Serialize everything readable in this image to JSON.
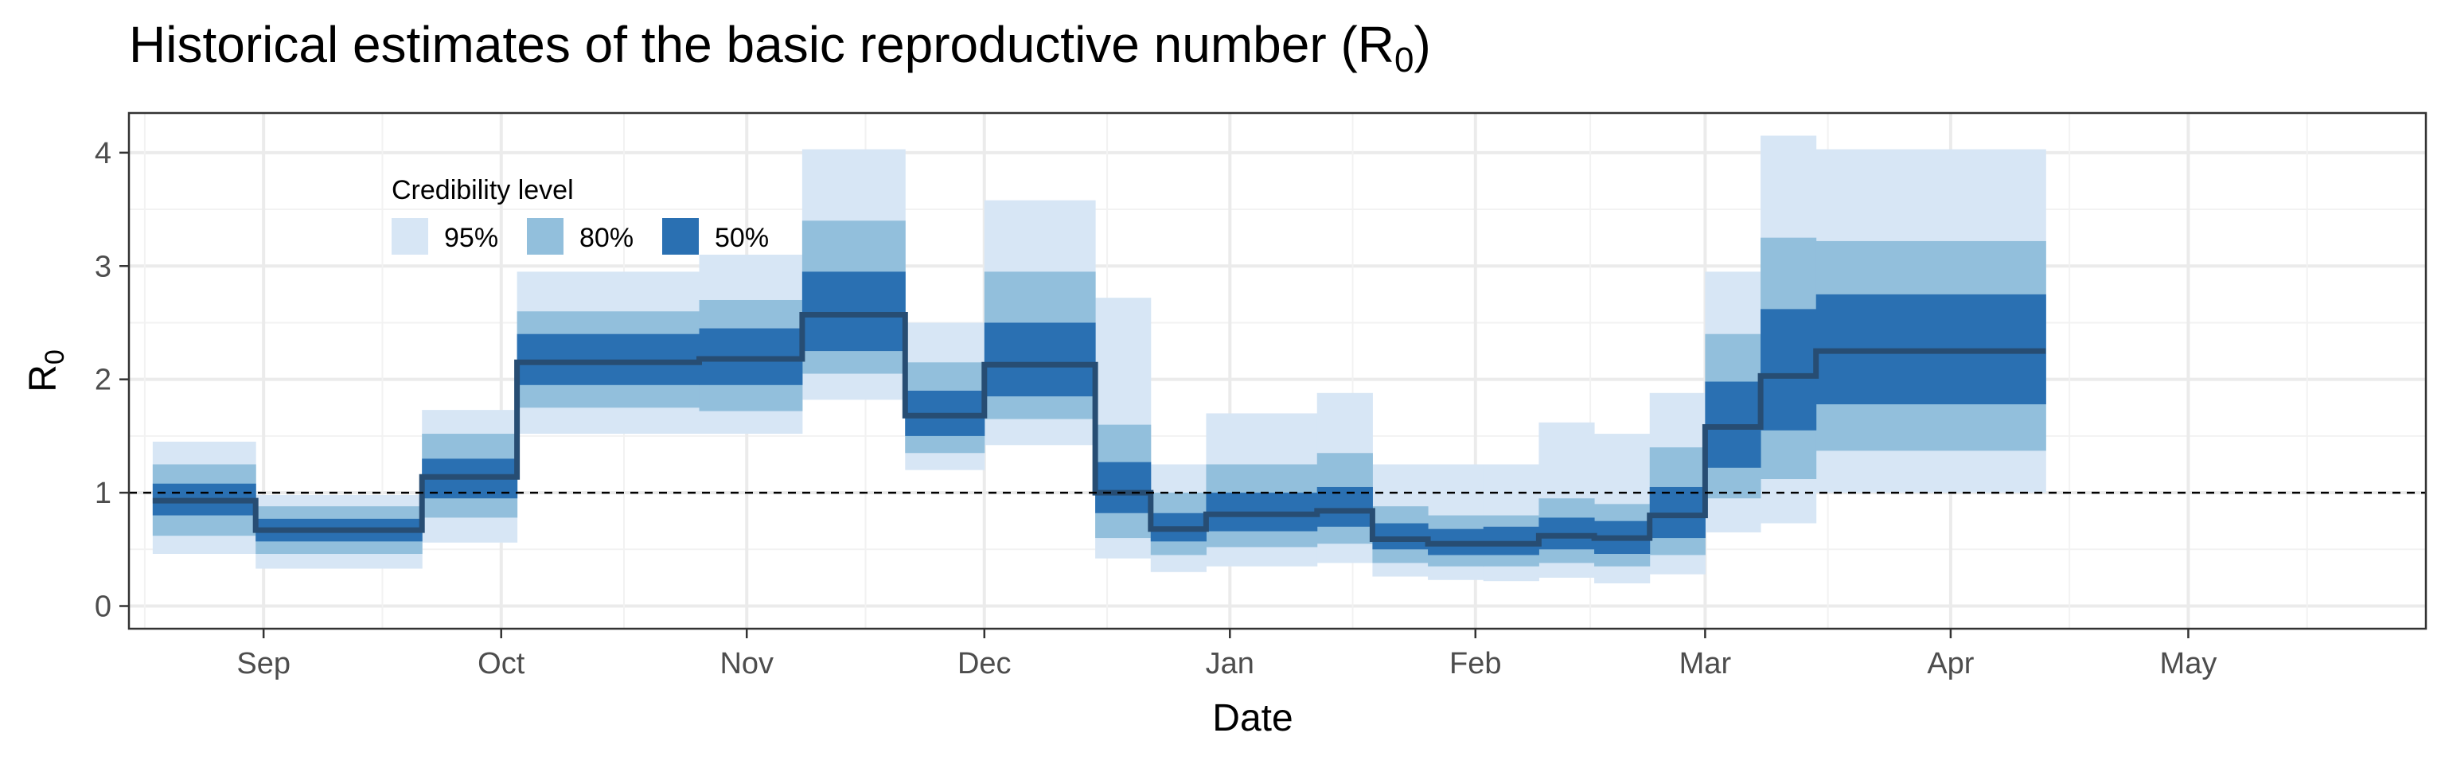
{
  "chart_data": {
    "type": "area",
    "title": "Historical estimates of the basic reproductive number (R",
    "title_sub": "0",
    "title_end": ")",
    "xlabel": "Date",
    "ylabel": "R",
    "ylabel_sub": "0",
    "xlim": [
      "2019-08-15",
      "2020-05-31"
    ],
    "ylim": [
      -0.2,
      4.35
    ],
    "y_ticks": [
      0,
      1,
      2,
      3,
      4
    ],
    "x_ticks": [
      {
        "date": "2019-09-01",
        "label": "Sep"
      },
      {
        "date": "2019-10-01",
        "label": "Oct"
      },
      {
        "date": "2019-11-01",
        "label": "Nov"
      },
      {
        "date": "2019-12-01",
        "label": "Dec"
      },
      {
        "date": "2020-01-01",
        "label": "Jan"
      },
      {
        "date": "2020-02-01",
        "label": "Feb"
      },
      {
        "date": "2020-03-01",
        "label": "Mar"
      },
      {
        "date": "2020-04-01",
        "label": "Apr"
      },
      {
        "date": "2020-05-01",
        "label": "May"
      }
    ],
    "grid": true,
    "reference_line": 1,
    "legend": {
      "title": "Credibility level",
      "position": "top-left",
      "entries": [
        {
          "label": "95%",
          "color": "#d7e6f5"
        },
        {
          "label": "80%",
          "color": "#92bfdc"
        },
        {
          "label": "50%",
          "color": "#2a70b2"
        }
      ]
    },
    "median_color": "#274d73",
    "segments": [
      {
        "start": "2019-08-18",
        "end": "2019-08-31",
        "median": 0.93,
        "q50": [
          0.8,
          1.08
        ],
        "q80": [
          0.62,
          1.25
        ],
        "q95": [
          0.46,
          1.45
        ]
      },
      {
        "start": "2019-08-31",
        "end": "2019-09-21",
        "median": 0.67,
        "q50": [
          0.57,
          0.77
        ],
        "q80": [
          0.46,
          0.88
        ],
        "q95": [
          0.33,
          0.98
        ]
      },
      {
        "start": "2019-09-21",
        "end": "2019-10-03",
        "median": 1.14,
        "q50": [
          0.95,
          1.3
        ],
        "q80": [
          0.78,
          1.52
        ],
        "q95": [
          0.56,
          1.73
        ]
      },
      {
        "start": "2019-10-03",
        "end": "2019-10-26",
        "median": 2.15,
        "q50": [
          1.95,
          2.4
        ],
        "q80": [
          1.75,
          2.6
        ],
        "q95": [
          1.52,
          2.95
        ]
      },
      {
        "start": "2019-10-26",
        "end": "2019-11-08",
        "median": 2.18,
        "q50": [
          1.95,
          2.45
        ],
        "q80": [
          1.72,
          2.7
        ],
        "q95": [
          1.52,
          3.1
        ]
      },
      {
        "start": "2019-11-08",
        "end": "2019-11-21",
        "median": 2.57,
        "q50": [
          2.25,
          2.95
        ],
        "q80": [
          2.05,
          3.4
        ],
        "q95": [
          1.82,
          4.03
        ]
      },
      {
        "start": "2019-11-21",
        "end": "2019-12-01",
        "median": 1.68,
        "q50": [
          1.5,
          1.9
        ],
        "q80": [
          1.35,
          2.15
        ],
        "q95": [
          1.2,
          2.5
        ]
      },
      {
        "start": "2019-12-01",
        "end": "2019-12-15",
        "median": 2.13,
        "q50": [
          1.85,
          2.5
        ],
        "q80": [
          1.65,
          2.95
        ],
        "q95": [
          1.42,
          3.58
        ]
      },
      {
        "start": "2019-12-15",
        "end": "2019-12-22",
        "median": 1.0,
        "q50": [
          0.82,
          1.27
        ],
        "q80": [
          0.6,
          1.6
        ],
        "q95": [
          0.42,
          2.72
        ]
      },
      {
        "start": "2019-12-22",
        "end": "2019-12-29",
        "median": 0.68,
        "q50": [
          0.57,
          0.82
        ],
        "q80": [
          0.45,
          1.0
        ],
        "q95": [
          0.3,
          1.25
        ]
      },
      {
        "start": "2019-12-29",
        "end": "2020-01-12",
        "median": 0.81,
        "q50": [
          0.66,
          1.0
        ],
        "q80": [
          0.52,
          1.25
        ],
        "q95": [
          0.35,
          1.7
        ]
      },
      {
        "start": "2020-01-12",
        "end": "2020-01-19",
        "median": 0.84,
        "q50": [
          0.7,
          1.05
        ],
        "q80": [
          0.55,
          1.35
        ],
        "q95": [
          0.38,
          1.88
        ]
      },
      {
        "start": "2020-01-19",
        "end": "2020-01-26",
        "median": 0.59,
        "q50": [
          0.5,
          0.73
        ],
        "q80": [
          0.38,
          0.88
        ],
        "q95": [
          0.26,
          1.25
        ]
      },
      {
        "start": "2020-01-26",
        "end": "2020-02-02",
        "median": 0.55,
        "q50": [
          0.45,
          0.68
        ],
        "q80": [
          0.35,
          0.8
        ],
        "q95": [
          0.23,
          1.25
        ]
      },
      {
        "start": "2020-02-02",
        "end": "2020-02-09",
        "median": 0.55,
        "q50": [
          0.45,
          0.7
        ],
        "q80": [
          0.35,
          0.8
        ],
        "q95": [
          0.22,
          1.25
        ]
      },
      {
        "start": "2020-02-09",
        "end": "2020-02-16",
        "median": 0.62,
        "q50": [
          0.5,
          0.78
        ],
        "q80": [
          0.38,
          0.95
        ],
        "q95": [
          0.25,
          1.62
        ]
      },
      {
        "start": "2020-02-16",
        "end": "2020-02-23",
        "median": 0.6,
        "q50": [
          0.46,
          0.75
        ],
        "q80": [
          0.35,
          0.9
        ],
        "q95": [
          0.2,
          1.52
        ]
      },
      {
        "start": "2020-02-23",
        "end": "2020-03-01",
        "median": 0.8,
        "q50": [
          0.6,
          1.05
        ],
        "q80": [
          0.45,
          1.4
        ],
        "q95": [
          0.28,
          1.88
        ]
      },
      {
        "start": "2020-03-01",
        "end": "2020-03-08",
        "median": 1.58,
        "q50": [
          1.22,
          1.98
        ],
        "q80": [
          0.95,
          2.4
        ],
        "q95": [
          0.65,
          2.95
        ]
      },
      {
        "start": "2020-03-08",
        "end": "2020-03-15",
        "median": 2.03,
        "q50": [
          1.55,
          2.62
        ],
        "q80": [
          1.12,
          3.25
        ],
        "q95": [
          0.73,
          4.15
        ]
      },
      {
        "start": "2020-03-15",
        "end": "2020-04-13",
        "median": 2.25,
        "q50": [
          1.78,
          2.75
        ],
        "q80": [
          1.37,
          3.22
        ],
        "q95": [
          1.0,
          4.03
        ]
      }
    ]
  }
}
